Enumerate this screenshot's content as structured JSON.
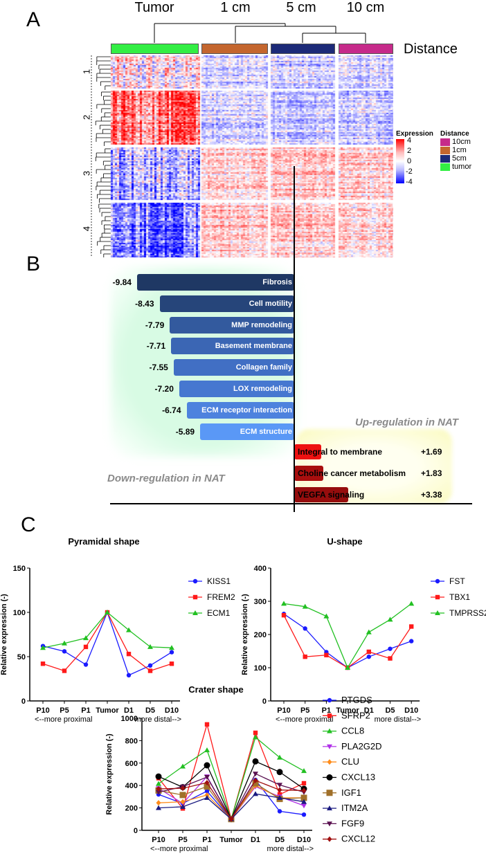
{
  "panel_a": {
    "label": "A",
    "column_groups": [
      "Tumor",
      "1 cm",
      "5 cm",
      "10 cm"
    ],
    "distance_label": "Distance",
    "row_clusters": [
      "1",
      "2",
      "3",
      "4"
    ],
    "group_colors": [
      "#33ee44",
      "#c4662e",
      "#1c2a78",
      "#c62a8a"
    ],
    "expression_legend": {
      "title": "Expression",
      "ticks": [
        "4",
        "2",
        "0",
        "-2",
        "-4"
      ]
    },
    "distance_legend": {
      "title": "Distance",
      "items": [
        {
          "label": "10cm",
          "color": "#c62a8a"
        },
        {
          "label": "1cm",
          "color": "#c4662e"
        },
        {
          "label": "5cm",
          "color": "#1c2a78"
        },
        {
          "label": "tumor",
          "color": "#33ee44"
        }
      ]
    }
  },
  "panel_b": {
    "label": "B",
    "down_title": "Down-regulation in NAT",
    "up_title": "Up-regulation in NAT",
    "down_bars": [
      {
        "label": "Fibrosis",
        "value": "-9.84",
        "num": 9.84,
        "color": "#1f3864"
      },
      {
        "label": "Cell motility",
        "value": "-8.43",
        "num": 8.43,
        "color": "#26457a"
      },
      {
        "label": "MMP remodeling",
        "value": "-7.79",
        "num": 7.79,
        "color": "#335a9e"
      },
      {
        "label": "Basement membrane",
        "value": "-7.71",
        "num": 7.71,
        "color": "#3b66b4"
      },
      {
        "label": "Collagen family",
        "value": "-7.55",
        "num": 7.55,
        "color": "#416fc4"
      },
      {
        "label": "LOX remodeling",
        "value": "-7.20",
        "num": 7.2,
        "color": "#4677d0"
      },
      {
        "label": "ECM receptor interaction",
        "value": "-6.74",
        "num": 6.74,
        "color": "#4d82de"
      },
      {
        "label": "ECM structure",
        "value": "-5.89",
        "num": 5.89,
        "color": "#5a98f6"
      }
    ],
    "up_bars": [
      {
        "label": "Integral to membrane",
        "value": "+1.69",
        "num": 1.69,
        "color": "#ee1111"
      },
      {
        "label": "Choline cancer metabolism",
        "value": "+1.83",
        "num": 1.83,
        "color": "#a80e0e"
      },
      {
        "label": "VEGFA signaling",
        "value": "+3.38",
        "num": 3.38,
        "color": "#960d0d"
      }
    ]
  },
  "panel_c": {
    "label": "C"
  },
  "chart_data": [
    {
      "type": "line",
      "title": "Pyramidal shape",
      "categories": [
        "P10",
        "P5",
        "P1",
        "Tumor",
        "D1",
        "D5",
        "D10"
      ],
      "xlabel_left": "<--more proximal",
      "xlabel_right": "more distal-->",
      "ylabel": "Relative expression (-)",
      "ylim": [
        0,
        150
      ],
      "yticks": [
        0,
        50,
        100,
        150
      ],
      "legend": "right",
      "series": [
        {
          "name": "KISS1",
          "color": "#1a1aff",
          "marker": "circle",
          "values": [
            62,
            56,
            41,
            100,
            29,
            40,
            55
          ]
        },
        {
          "name": "FREM2",
          "color": "#ff1a1a",
          "marker": "square",
          "values": [
            42,
            34,
            61,
            100,
            53,
            34,
            42
          ]
        },
        {
          "name": "ECM1",
          "color": "#22c022",
          "marker": "triangle",
          "values": [
            60,
            65,
            71,
            100,
            80,
            61,
            60
          ]
        }
      ]
    },
    {
      "type": "line",
      "title": "U-shape",
      "categories": [
        "P10",
        "P5",
        "P1",
        "Tumor",
        "D1",
        "D5",
        "D10"
      ],
      "xlabel_left": "<--more proximal",
      "xlabel_right": "more distal-->",
      "ylabel": "Relative expression (-)",
      "ylim": [
        0,
        400
      ],
      "yticks": [
        0,
        100,
        200,
        300,
        400
      ],
      "legend": "right",
      "series": [
        {
          "name": "FST",
          "color": "#1a1aff",
          "marker": "circle",
          "values": [
            262,
            218,
            147,
            100,
            133,
            157,
            180
          ]
        },
        {
          "name": "TBX1",
          "color": "#ff1a1a",
          "marker": "square",
          "values": [
            258,
            133,
            138,
            100,
            148,
            128,
            224
          ]
        },
        {
          "name": "TMPRSS2",
          "color": "#22c022",
          "marker": "triangle",
          "values": [
            293,
            284,
            255,
            100,
            207,
            245,
            293
          ]
        }
      ]
    },
    {
      "type": "line",
      "title": "Crater shape",
      "categories": [
        "P10",
        "P5",
        "P1",
        "Tumor",
        "D1",
        "D5",
        "D10"
      ],
      "xlabel_left": "<--more proximal",
      "xlabel_right": "more distal-->",
      "ylabel": "Relative expression (-)",
      "ylim": [
        0,
        1000
      ],
      "yticks": [
        0,
        200,
        400,
        600,
        800,
        1000
      ],
      "legend": "right",
      "series": [
        {
          "name": "PTGDS",
          "color": "#1a1aff",
          "marker": "circle",
          "values": [
            320,
            240,
            350,
            100,
            450,
            170,
            140
          ]
        },
        {
          "name": "SFRP2",
          "color": "#ff1a1a",
          "marker": "square",
          "values": [
            465,
            195,
            945,
            100,
            870,
            320,
            420
          ]
        },
        {
          "name": "CCL8",
          "color": "#22c022",
          "marker": "triangle",
          "values": [
            415,
            570,
            715,
            100,
            830,
            650,
            530
          ]
        },
        {
          "name": "PLA2G2D",
          "color": "#b030e8",
          "marker": "tridown",
          "values": [
            375,
            240,
            480,
            100,
            390,
            300,
            220
          ]
        },
        {
          "name": "CLU",
          "color": "#ff8c1a",
          "marker": "diamond",
          "values": [
            245,
            255,
            315,
            100,
            400,
            290,
            290
          ]
        },
        {
          "name": "CXCL13",
          "color": "#000000",
          "marker": "bigcircle",
          "values": [
            480,
            385,
            580,
            100,
            615,
            520,
            370
          ]
        },
        {
          "name": "IGF1",
          "color": "#a0702a",
          "marker": "bigsquare",
          "values": [
            355,
            315,
            390,
            100,
            420,
            280,
            290
          ]
        },
        {
          "name": "ITM2A",
          "color": "#1a1a80",
          "marker": "triangle",
          "values": [
            200,
            210,
            290,
            100,
            325,
            290,
            255
          ]
        },
        {
          "name": "FGF9",
          "color": "#5a1050",
          "marker": "tridown",
          "values": [
            340,
            390,
            475,
            100,
            505,
            405,
            340
          ]
        },
        {
          "name": "CXCL12",
          "color": "#a01010",
          "marker": "diamond",
          "values": [
            370,
            375,
            425,
            100,
            445,
            360,
            355
          ]
        }
      ]
    }
  ]
}
